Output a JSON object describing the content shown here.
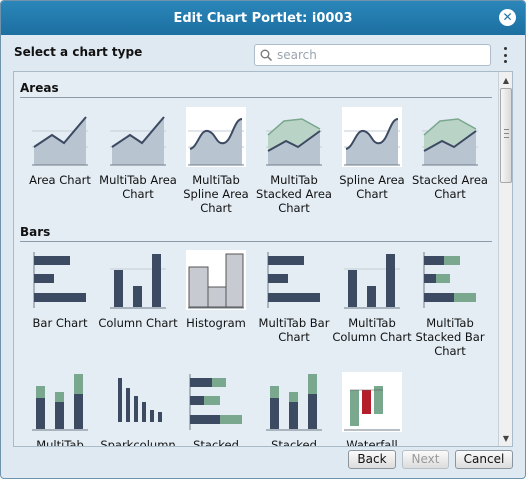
{
  "dialog": {
    "title": "Edit Chart Portlet: i0003",
    "close_icon": "✕"
  },
  "header": {
    "label": "Select a chart type",
    "search_placeholder": "search"
  },
  "sections": [
    {
      "title": "Areas",
      "items": [
        {
          "label": "Area Chart",
          "icon": "area-chart-icon"
        },
        {
          "label": "MultiTab Area Chart",
          "icon": "multitab-area-chart-icon"
        },
        {
          "label": "MultiTab Spline Area Chart",
          "icon": "multitab-spline-area-chart-icon"
        },
        {
          "label": "MultiTab Stacked Area Chart",
          "icon": "multitab-stacked-area-chart-icon"
        },
        {
          "label": "Spline Area Chart",
          "icon": "spline-area-chart-icon"
        },
        {
          "label": "Stacked Area Chart",
          "icon": "stacked-area-chart-icon"
        }
      ]
    },
    {
      "title": "Bars",
      "items": [
        {
          "label": "Bar Chart",
          "icon": "bar-chart-icon"
        },
        {
          "label": "Column Chart",
          "icon": "column-chart-icon"
        },
        {
          "label": "Histogram",
          "icon": "histogram-icon"
        },
        {
          "label": "MultiTab Bar Chart",
          "icon": "multitab-bar-chart-icon"
        },
        {
          "label": "MultiTab Column Chart",
          "icon": "multitab-column-chart-icon"
        },
        {
          "label": "MultiTab Stacked Bar Chart",
          "icon": "multitab-stacked-bar-chart-icon"
        },
        {
          "label": "MultiTab",
          "icon": "multitab-stacked-column-icon"
        },
        {
          "label": "Sparkcolumn",
          "icon": "sparkcolumn-icon"
        },
        {
          "label": "Stacked",
          "icon": "stacked-bar-icon"
        },
        {
          "label": "Stacked",
          "icon": "stacked-column-icon"
        },
        {
          "label": "Waterfall",
          "icon": "waterfall-icon"
        }
      ]
    }
  ],
  "footer": {
    "back_label": "Back",
    "next_label": "Next",
    "cancel_label": "Cancel"
  },
  "colors": {
    "title_bar": "#1f74a8",
    "chart_dark": "#3c4a62",
    "chart_green": "#7aa88e",
    "area_fill": "#b8c4d0",
    "waterfall_red": "#b41e2b"
  }
}
